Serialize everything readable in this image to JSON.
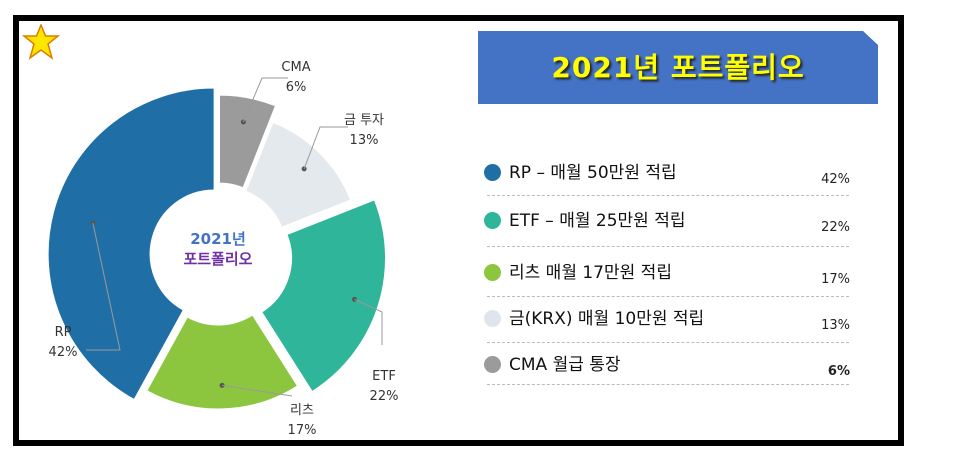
{
  "chart_data": {
    "type": "pie",
    "title": "2021년 포트폴리오",
    "center_label": [
      "2021년",
      "포트폴리오"
    ],
    "slices": [
      {
        "label": "CMA",
        "value": 6,
        "value_label": "6%",
        "color": "#9b9b9b"
      },
      {
        "label": "금 투자",
        "value": 13,
        "value_label": "13%",
        "color": "#e4e9ee"
      },
      {
        "label": "ETF",
        "value": 22,
        "value_label": "22%",
        "color": "#2fb69a"
      },
      {
        "label": "리츠",
        "value": 17,
        "value_label": "17%",
        "color": "#8cc63f"
      },
      {
        "label": "RP",
        "value": 42,
        "value_label": "42%",
        "color": "#1f6fa6"
      }
    ]
  },
  "legend": {
    "title": "2021년 포트폴리오",
    "items": [
      {
        "text": "RP – 매월 50만원 적립",
        "pct": "42%",
        "color": "#1f6fa6"
      },
      {
        "text": "ETF – 매월 25만원 적립",
        "pct": "22%",
        "color": "#2fb69a"
      },
      {
        "text": "리츠 매월 17만원 적립",
        "pct": "17%",
        "color": "#8cc63f"
      },
      {
        "text": "금(KRX) 매월 10만원 적립",
        "pct": "13%",
        "color": "#e4e9ee"
      },
      {
        "text": "CMA 월급 통장",
        "pct": "6%",
        "color": "#9b9b9b"
      }
    ]
  },
  "colors": {
    "title_bg": "#4472c4",
    "title_text": "#ffff00",
    "star": "#ffe600"
  }
}
